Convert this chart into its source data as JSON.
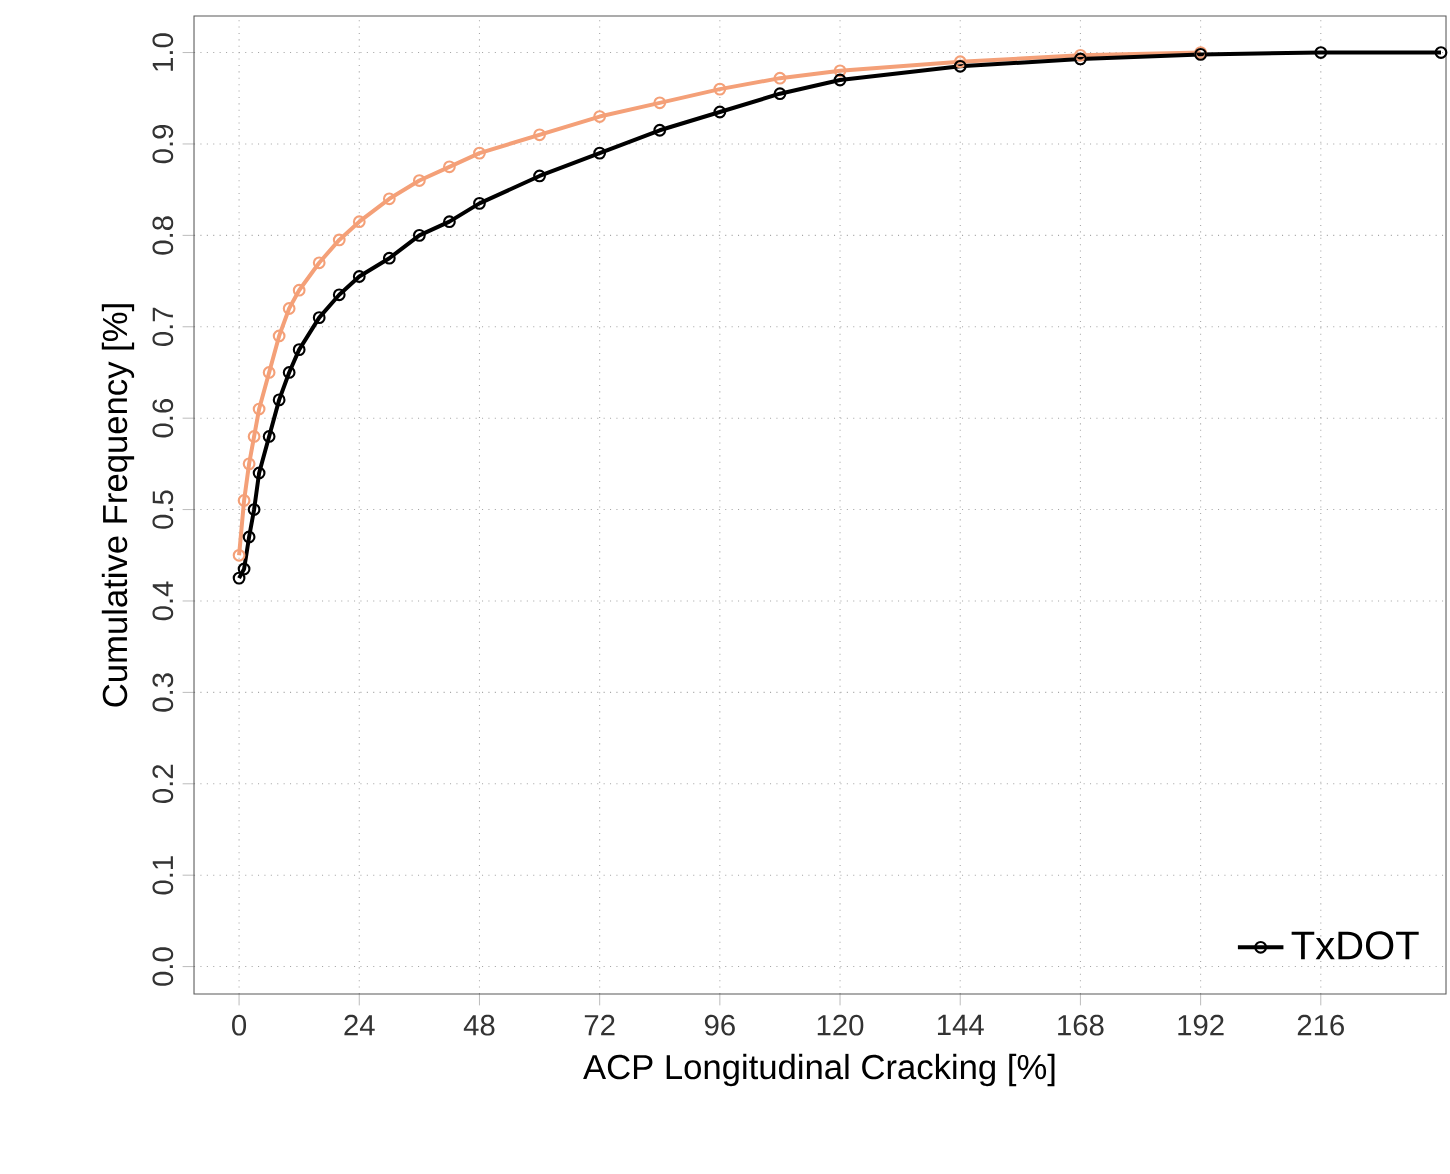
{
  "chart_data": {
    "type": "line",
    "xlabel": "ACP Longitudinal Cracking [%]",
    "ylabel": "Cumulative Frequency [%]",
    "xlim": [
      -9,
      241
    ],
    "ylim": [
      -0.03,
      1.04
    ],
    "xticks": [
      0,
      24,
      48,
      72,
      96,
      120,
      144,
      168,
      192,
      216
    ],
    "yticks": [
      {
        "value": 0,
        "label": "0.0"
      },
      0.1,
      0.2,
      0.3,
      0.4,
      0.5,
      0.6,
      0.7,
      0.8,
      0.9,
      {
        "value": 1,
        "label": "1.0"
      }
    ],
    "grid": true,
    "legend": "bottom right",
    "marker": "circle",
    "line_style": "solid",
    "series": [
      {
        "color": "#f4a078",
        "x": [
          0,
          1,
          2,
          3,
          4,
          6,
          8,
          10,
          12,
          16,
          20,
          24,
          30,
          36,
          42,
          48,
          60,
          72,
          84,
          96,
          108,
          120,
          144,
          168,
          192
        ],
        "values": [
          0.45,
          0.51,
          0.55,
          0.58,
          0.61,
          0.65,
          0.69,
          0.72,
          0.74,
          0.77,
          0.795,
          0.815,
          0.84,
          0.86,
          0.875,
          0.89,
          0.91,
          0.93,
          0.945,
          0.96,
          0.972,
          0.98,
          0.99,
          0.997,
          1.0
        ]
      },
      {
        "name": "TxDOT",
        "color": "#000000",
        "x": [
          0,
          1,
          2,
          3,
          4,
          6,
          8,
          10,
          12,
          16,
          20,
          24,
          30,
          36,
          42,
          48,
          60,
          72,
          84,
          96,
          108,
          120,
          144,
          168,
          192,
          216,
          240
        ],
        "values": [
          0.425,
          0.435,
          0.47,
          0.5,
          0.54,
          0.58,
          0.62,
          0.65,
          0.675,
          0.71,
          0.735,
          0.755,
          0.775,
          0.8,
          0.815,
          0.835,
          0.865,
          0.89,
          0.915,
          0.935,
          0.955,
          0.97,
          0.985,
          0.993,
          0.998,
          1.0,
          1.0
        ]
      }
    ]
  }
}
